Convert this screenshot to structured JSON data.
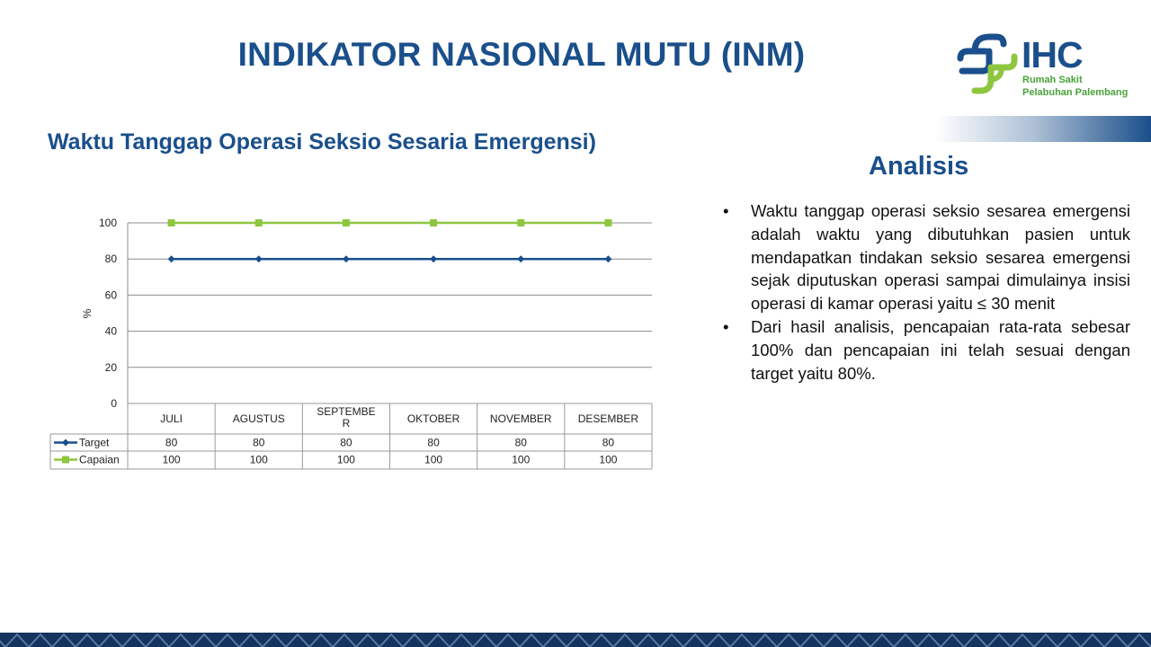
{
  "title": "INDIKATOR NASIONAL MUTU (INM)",
  "logo": {
    "name": "IHC",
    "line1": "Rumah Sakit",
    "line2": "Pelabuhan Palembang",
    "colors": {
      "blue": "#1a4f8b",
      "green": "#4aa23a"
    }
  },
  "subtitle": "Waktu Tanggap Operasi Seksio Sesaria Emergensi)",
  "analysis": {
    "heading": "Analisis",
    "bullets": [
      "Waktu tanggap operasi seksio sesarea emergensi adalah waktu yang dibutuhkan pasien untuk mendapatkan tindakan seksio sesarea emergensi sejak diputuskan operasi sampai dimulainya insisi operasi di kamar operasi yaitu ≤ 30 menit",
      "Dari hasil analisis, pencapaian rata-rata sebesar 100% dan pencapaian ini telah sesuai dengan target yaitu 80%."
    ],
    "bullet_symbol": "•"
  },
  "chart_data": {
    "type": "line",
    "categories": [
      "JULI",
      "AGUSTUS",
      "SEPTEMBER",
      "OKTOBER",
      "NOVEMBER",
      "DESEMBER"
    ],
    "category_display": [
      [
        "JULI"
      ],
      [
        "AGUSTUS"
      ],
      [
        "SEPTEMBE",
        "R"
      ],
      [
        "OKTOBER"
      ],
      [
        "NOVEMBER"
      ],
      [
        "DESEMBER"
      ]
    ],
    "series": [
      {
        "name": "Target",
        "values": [
          80,
          80,
          80,
          80,
          80,
          80
        ],
        "color": "#1a4f8b",
        "marker": "diamond"
      },
      {
        "name": "Capaian",
        "values": [
          100,
          100,
          100,
          100,
          100,
          100
        ],
        "color": "#8dc63f",
        "marker": "square"
      }
    ],
    "ylabel": "%",
    "ylim": [
      0,
      100
    ],
    "yticks": [
      0,
      20,
      40,
      60,
      80,
      100
    ],
    "grid": true,
    "legend": "data table below chart"
  },
  "colors": {
    "accent": "#1a4f8b",
    "footer": "#12345e"
  }
}
